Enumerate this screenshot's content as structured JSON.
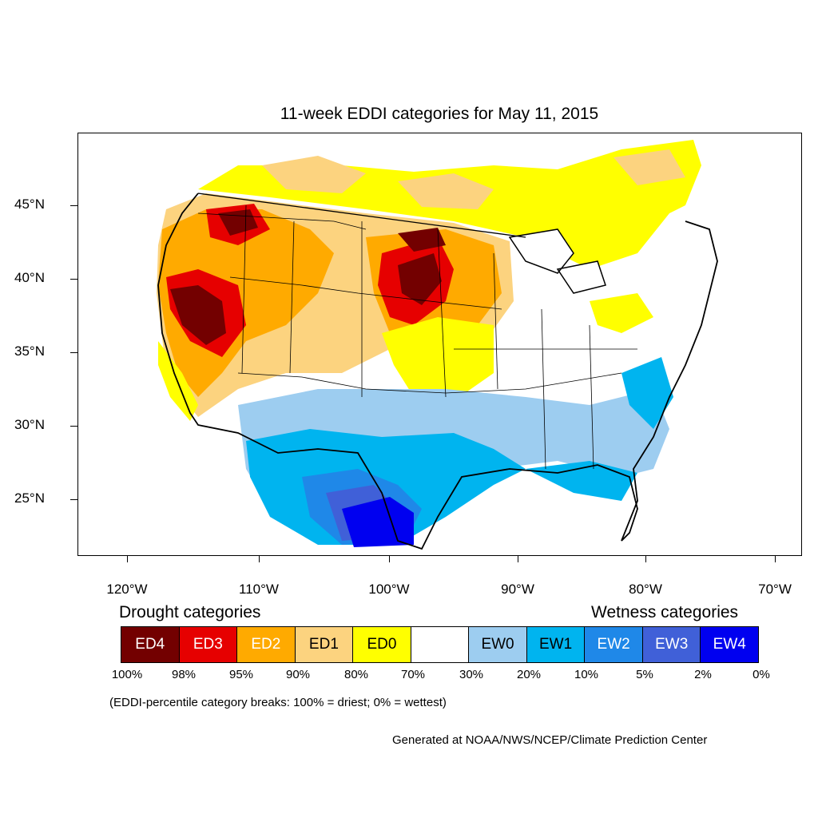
{
  "title": "11-week EDDI categories for May 11, 2015",
  "lat_labels": [
    "45°N",
    "40°N",
    "35°N",
    "30°N",
    "25°N"
  ],
  "lon_labels": [
    "120°W",
    "110°W",
    "100°W",
    "90°W",
    "80°W",
    "70°W"
  ],
  "drought_title": "Drought categories",
  "wetness_title": "Wetness categories",
  "legend": [
    {
      "label": "ED4",
      "color": "#730000",
      "text_color": "#ffffff"
    },
    {
      "label": "ED3",
      "color": "#e60000",
      "text_color": "#ffffff"
    },
    {
      "label": "ED2",
      "color": "#ffaa00",
      "text_color": "#ffffff"
    },
    {
      "label": "ED1",
      "color": "#fcd37f",
      "text_color": "#000000"
    },
    {
      "label": "ED0",
      "color": "#ffff00",
      "text_color": "#000000"
    },
    {
      "label": "",
      "color": "#ffffff",
      "text_color": "#000000"
    },
    {
      "label": "EW0",
      "color": "#9dcdf0",
      "text_color": "#000000"
    },
    {
      "label": "EW1",
      "color": "#00b4ef",
      "text_color": "#000000"
    },
    {
      "label": "EW2",
      "color": "#1f88e8",
      "text_color": "#ffffff"
    },
    {
      "label": "EW3",
      "color": "#4060d8",
      "text_color": "#ffffff"
    },
    {
      "label": "EW4",
      "color": "#0000f0",
      "text_color": "#ffffff"
    }
  ],
  "percent_breaks": [
    "100%",
    "98%",
    "95%",
    "90%",
    "80%",
    "70%",
    "30%",
    "20%",
    "10%",
    "5%",
    "2%",
    "0%"
  ],
  "note": "(EDDI-percentile category breaks: 100% = driest; 0% = wettest)",
  "credit": "Generated at NOAA/NWS/NCEP/Climate Prediction Center"
}
